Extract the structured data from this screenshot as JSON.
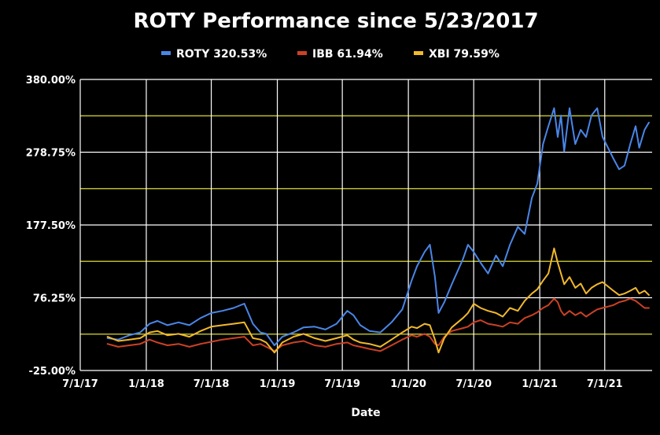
{
  "chart_data": {
    "type": "line",
    "title": "ROTY Performance since 5/23/2017",
    "xlabel": "Date",
    "ylabel": "",
    "legend_position": "top",
    "x_type": "date",
    "xlim": [
      "2017-07-01",
      "2021-11-10"
    ],
    "ylim": [
      -25,
      380
    ],
    "y_ticks": [
      -25,
      76.25,
      177.5,
      278.75,
      380
    ],
    "y_tick_labels": [
      "-25.00%",
      "76.25%",
      "177.50%",
      "278.75%",
      "380.00%"
    ],
    "x_ticks": [
      "2017-07-01",
      "2018-01-01",
      "2018-07-01",
      "2019-01-01",
      "2019-07-01",
      "2020-01-01",
      "2020-07-01",
      "2021-01-01",
      "2021-07-01"
    ],
    "x_tick_labels": [
      "7/1/17",
      "1/1/18",
      "7/1/18",
      "1/1/19",
      "7/1/19",
      "1/1/20",
      "7/1/20",
      "1/1/21",
      "7/1/21"
    ],
    "gridlines_major": [
      -25,
      76.25,
      177.5,
      278.75,
      380
    ],
    "gridlines_minor": [
      25.6,
      126.9,
      228.1,
      329.4
    ],
    "grid": true,
    "colors": {
      "background": "#000000",
      "text": "#ffffff",
      "grid_major": "#ffffff",
      "grid_minor": "#b8b82a"
    },
    "series": [
      {
        "name": "ROTY 320.53%",
        "color": "#4a86e8",
        "points": [
          [
            "2017-09-15",
            20
          ],
          [
            "2017-10-15",
            18
          ],
          [
            "2017-11-15",
            24
          ],
          [
            "2017-12-15",
            28
          ],
          [
            "2018-01-10",
            40
          ],
          [
            "2018-02-01",
            44
          ],
          [
            "2018-03-01",
            38
          ],
          [
            "2018-04-01",
            42
          ],
          [
            "2018-05-01",
            38
          ],
          [
            "2018-06-01",
            48
          ],
          [
            "2018-07-01",
            55
          ],
          [
            "2018-08-01",
            58
          ],
          [
            "2018-09-01",
            62
          ],
          [
            "2018-10-01",
            68
          ],
          [
            "2018-10-25",
            40
          ],
          [
            "2018-11-15",
            28
          ],
          [
            "2018-12-01",
            26
          ],
          [
            "2018-12-24",
            10
          ],
          [
            "2019-01-15",
            22
          ],
          [
            "2019-02-15",
            28
          ],
          [
            "2019-03-15",
            35
          ],
          [
            "2019-04-15",
            36
          ],
          [
            "2019-05-15",
            32
          ],
          [
            "2019-06-15",
            40
          ],
          [
            "2019-07-15",
            58
          ],
          [
            "2019-08-01",
            52
          ],
          [
            "2019-08-20",
            38
          ],
          [
            "2019-09-15",
            30
          ],
          [
            "2019-10-15",
            28
          ],
          [
            "2019-11-15",
            42
          ],
          [
            "2019-12-15",
            60
          ],
          [
            "2020-01-10",
            100
          ],
          [
            "2020-01-25",
            120
          ],
          [
            "2020-02-15",
            140
          ],
          [
            "2020-03-01",
            150
          ],
          [
            "2020-03-15",
            105
          ],
          [
            "2020-03-25",
            55
          ],
          [
            "2020-04-10",
            70
          ],
          [
            "2020-05-01",
            95
          ],
          [
            "2020-06-01",
            130
          ],
          [
            "2020-06-15",
            150
          ],
          [
            "2020-07-01",
            140
          ],
          [
            "2020-07-20",
            125
          ],
          [
            "2020-08-10",
            110
          ],
          [
            "2020-09-01",
            135
          ],
          [
            "2020-09-20",
            120
          ],
          [
            "2020-10-10",
            150
          ],
          [
            "2020-11-01",
            175
          ],
          [
            "2020-11-20",
            165
          ],
          [
            "2020-12-10",
            215
          ],
          [
            "2020-12-25",
            235
          ],
          [
            "2021-01-10",
            290
          ],
          [
            "2021-01-25",
            315
          ],
          [
            "2021-02-10",
            340
          ],
          [
            "2021-02-20",
            300
          ],
          [
            "2021-03-01",
            330
          ],
          [
            "2021-03-10",
            280
          ],
          [
            "2021-03-25",
            340
          ],
          [
            "2021-04-10",
            290
          ],
          [
            "2021-04-25",
            310
          ],
          [
            "2021-05-10",
            300
          ],
          [
            "2021-05-25",
            330
          ],
          [
            "2021-06-10",
            340
          ],
          [
            "2021-06-25",
            300
          ],
          [
            "2021-07-10",
            285
          ],
          [
            "2021-07-25",
            270
          ],
          [
            "2021-08-10",
            255
          ],
          [
            "2021-08-25",
            260
          ],
          [
            "2021-09-10",
            290
          ],
          [
            "2021-09-25",
            315
          ],
          [
            "2021-10-05",
            285
          ],
          [
            "2021-10-20",
            310
          ],
          [
            "2021-11-01",
            320
          ]
        ]
      },
      {
        "name": "IBB 61.94%",
        "color": "#cc4125",
        "points": [
          [
            "2017-09-15",
            12
          ],
          [
            "2017-10-15",
            8
          ],
          [
            "2017-11-15",
            10
          ],
          [
            "2017-12-15",
            12
          ],
          [
            "2018-01-10",
            18
          ],
          [
            "2018-02-01",
            14
          ],
          [
            "2018-03-01",
            10
          ],
          [
            "2018-04-01",
            12
          ],
          [
            "2018-05-01",
            8
          ],
          [
            "2018-06-01",
            12
          ],
          [
            "2018-07-01",
            15
          ],
          [
            "2018-08-01",
            18
          ],
          [
            "2018-09-01",
            20
          ],
          [
            "2018-10-01",
            22
          ],
          [
            "2018-10-25",
            10
          ],
          [
            "2018-11-15",
            12
          ],
          [
            "2018-12-01",
            8
          ],
          [
            "2018-12-24",
            2
          ],
          [
            "2019-01-15",
            10
          ],
          [
            "2019-02-15",
            14
          ],
          [
            "2019-03-15",
            16
          ],
          [
            "2019-04-15",
            10
          ],
          [
            "2019-05-15",
            8
          ],
          [
            "2019-06-15",
            12
          ],
          [
            "2019-07-15",
            14
          ],
          [
            "2019-08-01",
            10
          ],
          [
            "2019-08-20",
            8
          ],
          [
            "2019-09-15",
            5
          ],
          [
            "2019-10-15",
            2
          ],
          [
            "2019-11-15",
            10
          ],
          [
            "2019-12-15",
            18
          ],
          [
            "2020-01-10",
            24
          ],
          [
            "2020-01-25",
            22
          ],
          [
            "2020-02-15",
            26
          ],
          [
            "2020-03-01",
            22
          ],
          [
            "2020-03-15",
            12
          ],
          [
            "2020-03-25",
            10
          ],
          [
            "2020-04-10",
            22
          ],
          [
            "2020-05-01",
            30
          ],
          [
            "2020-06-01",
            34
          ],
          [
            "2020-06-15",
            36
          ],
          [
            "2020-07-01",
            42
          ],
          [
            "2020-07-20",
            45
          ],
          [
            "2020-08-10",
            40
          ],
          [
            "2020-09-01",
            38
          ],
          [
            "2020-09-20",
            36
          ],
          [
            "2020-10-10",
            42
          ],
          [
            "2020-11-01",
            40
          ],
          [
            "2020-11-20",
            48
          ],
          [
            "2020-12-10",
            52
          ],
          [
            "2020-12-25",
            56
          ],
          [
            "2021-01-10",
            62
          ],
          [
            "2021-01-25",
            66
          ],
          [
            "2021-02-10",
            75
          ],
          [
            "2021-02-20",
            70
          ],
          [
            "2021-03-01",
            58
          ],
          [
            "2021-03-10",
            52
          ],
          [
            "2021-03-25",
            58
          ],
          [
            "2021-04-10",
            52
          ],
          [
            "2021-04-25",
            56
          ],
          [
            "2021-05-10",
            50
          ],
          [
            "2021-05-25",
            55
          ],
          [
            "2021-06-10",
            60
          ],
          [
            "2021-06-25",
            62
          ],
          [
            "2021-07-10",
            64
          ],
          [
            "2021-07-25",
            66
          ],
          [
            "2021-08-10",
            70
          ],
          [
            "2021-08-25",
            72
          ],
          [
            "2021-09-10",
            75
          ],
          [
            "2021-09-25",
            72
          ],
          [
            "2021-10-05",
            68
          ],
          [
            "2021-10-20",
            62
          ],
          [
            "2021-11-01",
            62
          ]
        ]
      },
      {
        "name": "XBI 79.59%",
        "color": "#f1b92b",
        "points": [
          [
            "2017-09-15",
            22
          ],
          [
            "2017-10-15",
            16
          ],
          [
            "2017-11-15",
            18
          ],
          [
            "2017-12-15",
            20
          ],
          [
            "2018-01-10",
            28
          ],
          [
            "2018-02-01",
            30
          ],
          [
            "2018-03-01",
            24
          ],
          [
            "2018-04-01",
            26
          ],
          [
            "2018-05-01",
            22
          ],
          [
            "2018-06-01",
            30
          ],
          [
            "2018-07-01",
            36
          ],
          [
            "2018-08-01",
            38
          ],
          [
            "2018-09-01",
            40
          ],
          [
            "2018-10-01",
            42
          ],
          [
            "2018-10-25",
            20
          ],
          [
            "2018-11-15",
            18
          ],
          [
            "2018-12-01",
            14
          ],
          [
            "2018-12-24",
            0
          ],
          [
            "2019-01-15",
            14
          ],
          [
            "2019-02-15",
            22
          ],
          [
            "2019-03-15",
            26
          ],
          [
            "2019-04-15",
            20
          ],
          [
            "2019-05-15",
            16
          ],
          [
            "2019-06-15",
            20
          ],
          [
            "2019-07-15",
            24
          ],
          [
            "2019-08-01",
            18
          ],
          [
            "2019-08-20",
            14
          ],
          [
            "2019-09-15",
            12
          ],
          [
            "2019-10-15",
            8
          ],
          [
            "2019-11-15",
            18
          ],
          [
            "2019-12-15",
            28
          ],
          [
            "2020-01-10",
            36
          ],
          [
            "2020-01-25",
            34
          ],
          [
            "2020-02-15",
            40
          ],
          [
            "2020-03-01",
            38
          ],
          [
            "2020-03-15",
            18
          ],
          [
            "2020-03-25",
            0
          ],
          [
            "2020-04-10",
            20
          ],
          [
            "2020-05-01",
            35
          ],
          [
            "2020-06-01",
            48
          ],
          [
            "2020-06-15",
            55
          ],
          [
            "2020-07-01",
            68
          ],
          [
            "2020-07-20",
            62
          ],
          [
            "2020-08-10",
            58
          ],
          [
            "2020-09-01",
            55
          ],
          [
            "2020-09-20",
            50
          ],
          [
            "2020-10-10",
            62
          ],
          [
            "2020-11-01",
            58
          ],
          [
            "2020-11-20",
            72
          ],
          [
            "2020-12-10",
            82
          ],
          [
            "2020-12-25",
            88
          ],
          [
            "2021-01-10",
            100
          ],
          [
            "2021-01-25",
            110
          ],
          [
            "2021-02-10",
            145
          ],
          [
            "2021-02-20",
            125
          ],
          [
            "2021-03-01",
            110
          ],
          [
            "2021-03-10",
            95
          ],
          [
            "2021-03-25",
            105
          ],
          [
            "2021-04-10",
            90
          ],
          [
            "2021-04-25",
            96
          ],
          [
            "2021-05-10",
            82
          ],
          [
            "2021-05-25",
            90
          ],
          [
            "2021-06-10",
            95
          ],
          [
            "2021-06-25",
            98
          ],
          [
            "2021-07-10",
            92
          ],
          [
            "2021-07-25",
            86
          ],
          [
            "2021-08-10",
            80
          ],
          [
            "2021-08-25",
            82
          ],
          [
            "2021-09-10",
            86
          ],
          [
            "2021-09-25",
            90
          ],
          [
            "2021-10-05",
            82
          ],
          [
            "2021-10-20",
            86
          ],
          [
            "2021-11-01",
            80
          ]
        ]
      }
    ]
  }
}
